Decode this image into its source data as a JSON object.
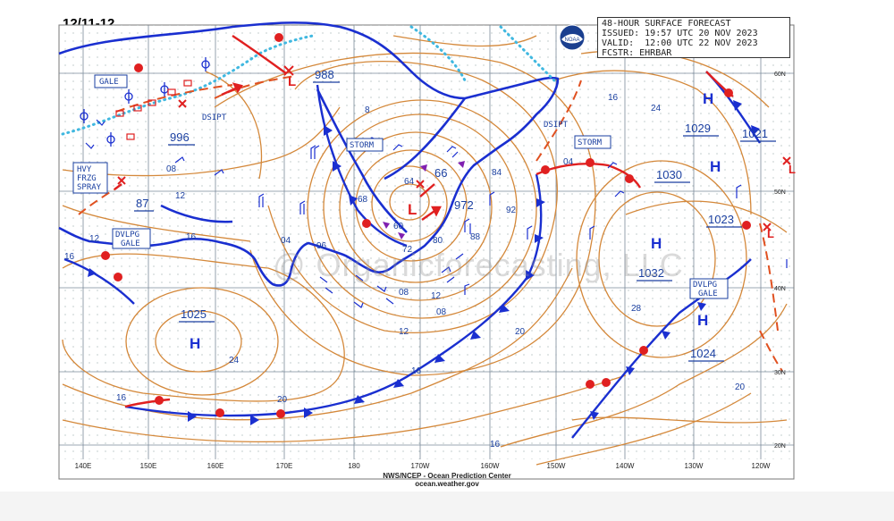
{
  "corner_label": "12/11-12",
  "title_box": {
    "line1": "48-HOUR SURFACE FORECAST",
    "line2": "ISSUED: 19:57 UTC 20 NOV 2023",
    "line3": "VALID:  12:00 UTC 22 NOV 2023",
    "line4": "FCSTR: EHRBAR"
  },
  "credit": {
    "line1": "NWS/NCEP - Ocean Prediction Center",
    "line2": "ocean.weather.gov"
  },
  "watermark": "@ Organicforecasting, LLC",
  "lon_labels": [
    "140E",
    "150E",
    "160E",
    "170E",
    "180",
    "170W",
    "160W",
    "150W",
    "140W",
    "130W",
    "120W"
  ],
  "lat_labels": [
    "60N",
    "50N",
    "40N",
    "30N",
    "20N"
  ],
  "pressure_centers": [
    {
      "kind": "L",
      "value": "988"
    },
    {
      "kind": "L",
      "value": "996"
    },
    {
      "kind": "L",
      "value": "87"
    },
    {
      "kind": "L",
      "value": "972"
    },
    {
      "kind": "H",
      "value": "1029"
    },
    {
      "kind": "H",
      "value": "1021"
    },
    {
      "kind": "H",
      "value": "1030"
    },
    {
      "kind": "H",
      "value": "1023"
    },
    {
      "kind": "H",
      "value": "1032"
    },
    {
      "kind": "H",
      "value": "1024"
    },
    {
      "kind": "H",
      "value": "1025"
    }
  ],
  "boxed_labels": {
    "gale_nw": "GALE",
    "hvy_frzg_spray": "HVY\nFRZG\nSPRAY",
    "dvlpg_gale_w": "DVLPG\nGALE",
    "storm_center": "STORM",
    "storm_east": "STORM",
    "dvlpg_gale_e": "DVLPG\nGALE"
  },
  "text_labels": {
    "dsipt_w": "DSIPT",
    "dsipt_e": "DSIPT",
    "h_symbol": "H",
    "l_symbol": "L"
  },
  "isobar_labels": [
    "08",
    "12",
    "16",
    "04",
    "96",
    "68",
    "64",
    "60",
    "66",
    "72",
    "80",
    "84",
    "88",
    "92",
    "04",
    "16",
    "24",
    "28",
    "20",
    "20",
    "16",
    "12",
    "08",
    "24",
    "16",
    "20",
    "16",
    "12",
    "08",
    "12",
    "16",
    "8"
  ],
  "colors": {
    "isobar": "#d4883a",
    "coast": "#1a2fd0",
    "cold_front": "#1a2fd0",
    "warm_front": "#e02020",
    "ice_edge": "#40b8e0",
    "dissipating": "#e05020",
    "label": "#1a3fa0"
  }
}
